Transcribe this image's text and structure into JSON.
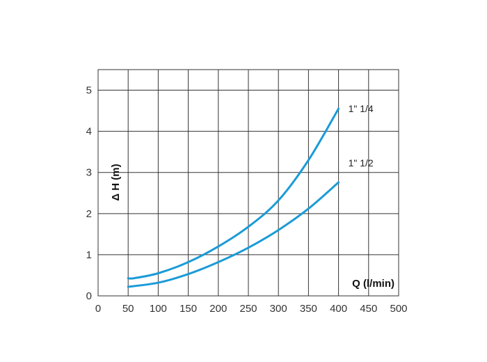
{
  "chart_data": {
    "type": "line",
    "title": "",
    "xlabel": "Q (l/min)",
    "ylabel": "Δ H (m)",
    "xlim": [
      0,
      500
    ],
    "ylim": [
      0,
      5.5
    ],
    "x_ticks": [
      "0",
      "50",
      "100",
      "150",
      "200",
      "250",
      "300",
      "350",
      "400",
      "450",
      "500"
    ],
    "y_ticks": [
      "0",
      "1",
      "2",
      "3",
      "4",
      "5"
    ],
    "grid": true,
    "line_color": "#1a9bd7",
    "series": [
      {
        "name": "1\" 1/4",
        "x": [
          50,
          60,
          100,
          150,
          200,
          250,
          300,
          350,
          400
        ],
        "y": [
          0.43,
          0.43,
          0.55,
          0.82,
          1.2,
          1.68,
          2.32,
          3.3,
          4.55
        ]
      },
      {
        "name": "1\" 1/2",
        "x": [
          50,
          100,
          150,
          200,
          250,
          300,
          350,
          400
        ],
        "y": [
          0.22,
          0.32,
          0.53,
          0.82,
          1.17,
          1.6,
          2.12,
          2.76
        ]
      }
    ]
  }
}
